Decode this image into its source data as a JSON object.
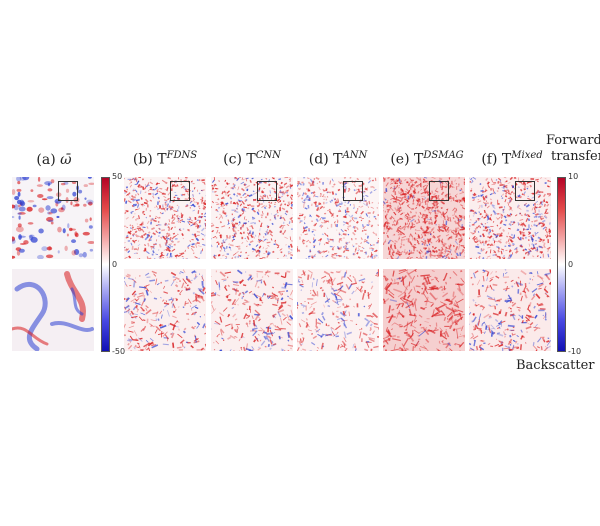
{
  "panels": [
    {
      "id": "a",
      "label": "(a) ",
      "symbol": "ω̄",
      "sup": ""
    },
    {
      "id": "b",
      "label": "(b) T",
      "sup": "FDNS"
    },
    {
      "id": "c",
      "label": "(c) T",
      "sup": "CNN"
    },
    {
      "id": "d",
      "label": "(d) T",
      "sup": "ANN"
    },
    {
      "id": "e",
      "label": "(e) T",
      "sup": "DSMAG"
    },
    {
      "id": "f",
      "label": "(f) T",
      "sup": "Mixed"
    }
  ],
  "colorbar_left": {
    "max": "50",
    "mid": "0",
    "min": "-50"
  },
  "colorbar_right": {
    "max": "10",
    "mid": "0",
    "min": "-10"
  },
  "labels": {
    "forward_1": "Forward",
    "forward_2": "transfer",
    "backscatter": "Backscatter"
  },
  "colors": {
    "positive": "#d7191c",
    "negative": "#2c3fd1",
    "neutral": "#ffffff"
  }
}
